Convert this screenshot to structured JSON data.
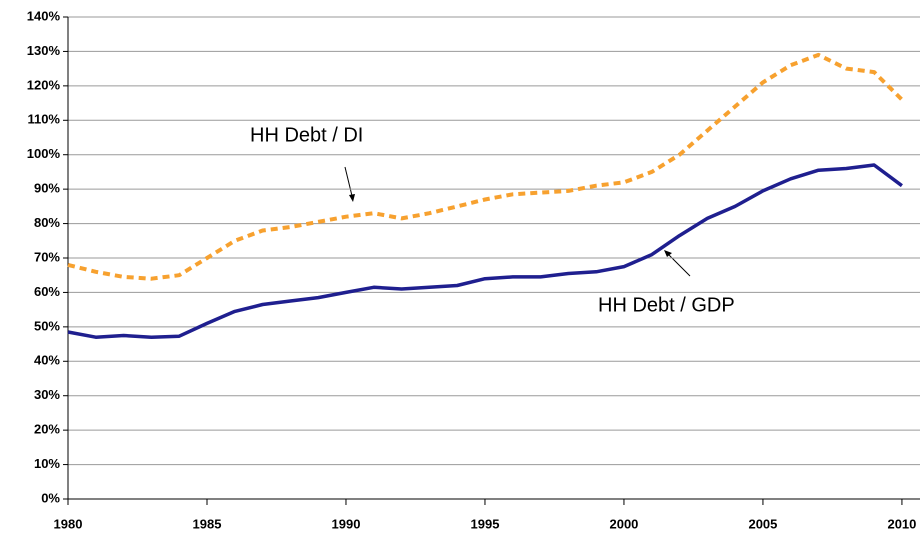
{
  "chart_data": {
    "type": "line",
    "x": [
      1980,
      1981,
      1982,
      1983,
      1984,
      1985,
      1986,
      1987,
      1988,
      1989,
      1990,
      1991,
      1992,
      1993,
      1994,
      1995,
      1996,
      1997,
      1998,
      1999,
      2000,
      2001,
      2002,
      2003,
      2004,
      2005,
      2006,
      2007,
      2008,
      2009,
      2010
    ],
    "series": [
      {
        "name": "HH Debt / DI",
        "color": "#f7a12f",
        "dash": true,
        "values": [
          68,
          66,
          64.5,
          64,
          65,
          70,
          75,
          78,
          79,
          80.5,
          82,
          83,
          81.5,
          83,
          85,
          87,
          88.5,
          89,
          89.5,
          91,
          92,
          95,
          100,
          107,
          114,
          121,
          126,
          129,
          125,
          124,
          116
        ]
      },
      {
        "name": "HH Debt / GDP",
        "color": "#1f1f8f",
        "dash": false,
        "values": [
          48.5,
          47,
          47.5,
          47,
          47.3,
          51,
          54.5,
          56.5,
          57.5,
          58.5,
          60,
          61.5,
          61,
          61.5,
          62,
          64,
          64.5,
          64.5,
          65.5,
          66,
          67.5,
          71,
          76.5,
          81.5,
          85,
          89.5,
          93,
          95.5,
          96,
          97,
          91
        ]
      }
    ],
    "xlim": [
      1980,
      2010.65
    ],
    "xticks": [
      1980,
      1985,
      1990,
      1995,
      2000,
      2005,
      2010
    ],
    "ylim": [
      0,
      140
    ],
    "yticks": [
      {
        "value": 0,
        "label": "0%"
      },
      {
        "value": 10,
        "label": "10%"
      },
      {
        "value": 20,
        "label": "20%"
      },
      {
        "value": 30,
        "label": "30%"
      },
      {
        "value": 40,
        "label": "40%"
      },
      {
        "value": 50,
        "label": "50%"
      },
      {
        "value": 60,
        "label": "60%"
      },
      {
        "value": 70,
        "label": "70%"
      },
      {
        "value": 80,
        "label": "80%"
      },
      {
        "value": 90,
        "label": "90%"
      },
      {
        "value": 100,
        "label": "100%"
      },
      {
        "value": 110,
        "label": "110%"
      },
      {
        "value": 120,
        "label": "120%"
      },
      {
        "value": 130,
        "label": "130%"
      },
      {
        "value": 140,
        "label": "140%"
      }
    ],
    "grid": true,
    "annotations": [
      "HH Debt / DI",
      "HH Debt / GDP"
    ]
  }
}
